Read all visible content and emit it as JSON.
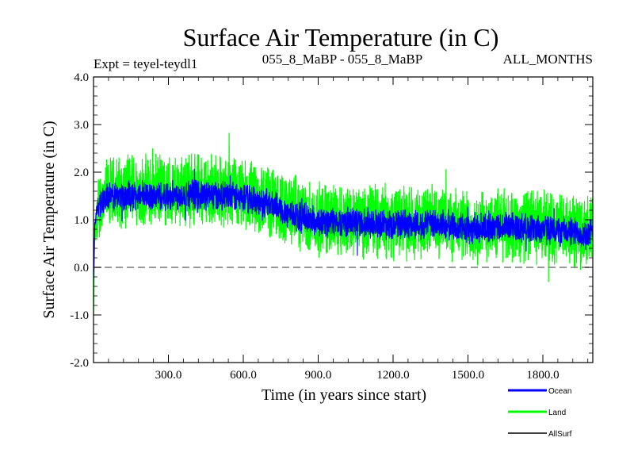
{
  "chart_data": {
    "type": "line",
    "title": "Surface Air Temperature (in C)",
    "subtitle_left": "Expt = teyel-teydl1",
    "subtitle_center": "055_8_MaBP - 055_8_MaBP",
    "subtitle_right": "ALL_MONTHS",
    "xlabel": "Time (in years since start)",
    "ylabel": "Surface Air Temperature (in C)",
    "xlim": [
      0,
      2000
    ],
    "ylim": [
      -2.0,
      4.0
    ],
    "x_ticks": [
      300,
      600,
      900,
      1200,
      1500,
      1800
    ],
    "x_tick_labels": [
      "300.0",
      "600.0",
      "900.0",
      "1200.0",
      "1500.0",
      "1800.0"
    ],
    "y_ticks": [
      -2,
      -1,
      0,
      1,
      2,
      3,
      4
    ],
    "y_tick_labels": [
      "-2.0",
      "-1.0",
      "0.0",
      "1.0",
      "2.0",
      "3.0",
      "4.0"
    ],
    "reference_line": 0.0,
    "legend": [
      "Ocean",
      "Land",
      "AllSurf"
    ],
    "series": [
      {
        "name": "Land",
        "color": "#00ff00",
        "x": [
          0,
          5,
          20,
          50,
          100,
          200,
          300,
          400,
          500,
          600,
          700,
          800,
          900,
          1000,
          1100,
          1200,
          1300,
          1400,
          1500,
          1600,
          1700,
          1800,
          1900,
          2000
        ],
        "mean": [
          -1.0,
          0.6,
          1.3,
          1.5,
          1.6,
          1.6,
          1.6,
          1.65,
          1.6,
          1.5,
          1.4,
          1.15,
          1.0,
          1.0,
          1.0,
          0.95,
          0.95,
          0.95,
          0.85,
          0.9,
          0.9,
          0.85,
          0.8,
          0.75
        ],
        "amplitude": 0.85
      },
      {
        "name": "Ocean",
        "color": "#0000ff",
        "x": [
          0,
          5,
          20,
          50,
          100,
          200,
          300,
          400,
          500,
          600,
          700,
          800,
          900,
          1000,
          1100,
          1200,
          1300,
          1400,
          1500,
          1600,
          1700,
          1800,
          1900,
          2000
        ],
        "mean": [
          -0.3,
          0.9,
          1.35,
          1.45,
          1.5,
          1.5,
          1.5,
          1.55,
          1.5,
          1.45,
          1.35,
          1.1,
          0.95,
          0.95,
          0.95,
          0.9,
          0.9,
          0.9,
          0.8,
          0.85,
          0.85,
          0.8,
          0.75,
          0.7
        ],
        "amplitude": 0.35
      },
      {
        "name": "AllSurf",
        "color": "#000000",
        "x": [
          0,
          2000
        ],
        "mean": [
          0.0,
          0.0
        ],
        "amplitude": 0.0
      }
    ]
  }
}
